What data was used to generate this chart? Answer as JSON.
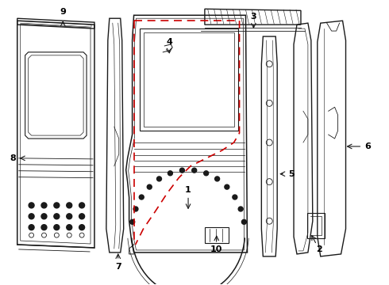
{
  "bg_color": "#ffffff",
  "line_color": "#1a1a1a",
  "red_dashed": "#cc0000",
  "label_color": "#000000",
  "figsize": [
    4.9,
    3.6
  ],
  "dpi": 100
}
